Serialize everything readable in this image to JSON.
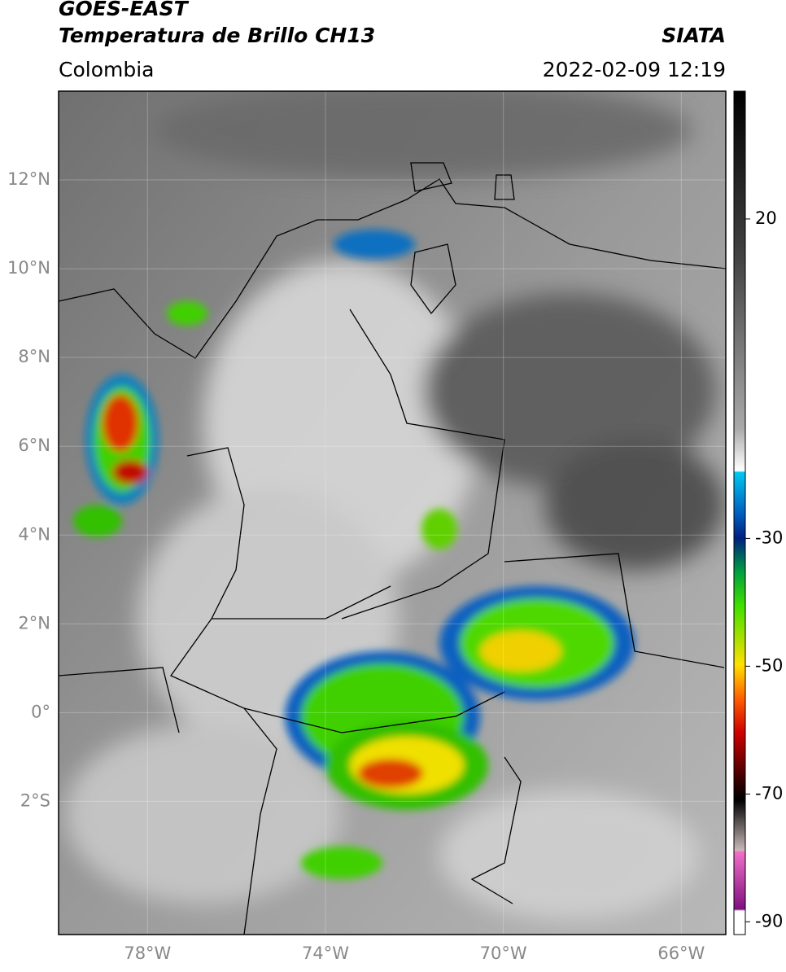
{
  "header": {
    "title": "GOES-EAST",
    "subtitle": "Temperatura de Brillo CH13",
    "source": "SIATA",
    "region": "Colombia",
    "datetime": "2022-02-09 12:19"
  },
  "chart_data": {
    "type": "map",
    "xlim": [
      -80,
      -65
    ],
    "ylim": [
      -5,
      14
    ],
    "xticks": [
      {
        "value": -78,
        "label": "78°W"
      },
      {
        "value": -74,
        "label": "74°W"
      },
      {
        "value": -70,
        "label": "70°W"
      },
      {
        "value": -66,
        "label": "66°W"
      }
    ],
    "yticks": [
      {
        "value": 12,
        "label": "12°N"
      },
      {
        "value": 10,
        "label": "10°N"
      },
      {
        "value": 8,
        "label": "8°N"
      },
      {
        "value": 6,
        "label": "6°N"
      },
      {
        "value": 4,
        "label": "4°N"
      },
      {
        "value": 2,
        "label": "2°N"
      },
      {
        "value": 0,
        "label": "0°"
      },
      {
        "value": -2,
        "label": "2°S"
      }
    ],
    "grid": true,
    "colorbar": {
      "lim": [
        -92,
        40
      ],
      "ticks": [
        20,
        -30,
        -50,
        -70,
        -90
      ]
    }
  }
}
